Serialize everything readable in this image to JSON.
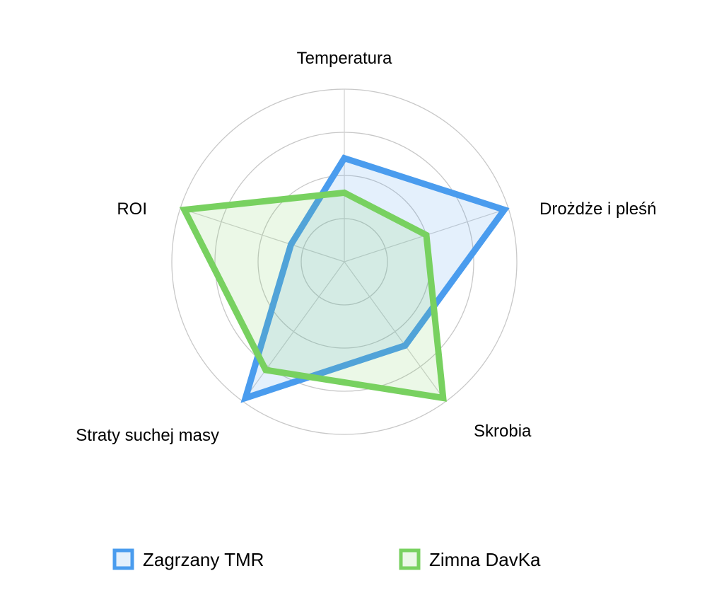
{
  "chart_data": {
    "type": "radar",
    "title": "",
    "axes": [
      "Temperatura",
      "Drożdże i pleśń",
      "Skrobia",
      "Straty suchej masy",
      "ROI"
    ],
    "range": [
      0,
      4
    ],
    "rings": 4,
    "grid": true,
    "legend_position": "bottom",
    "series": [
      {
        "name": "Zagrzany TMR",
        "values": [
          2.4,
          3.9,
          2.4,
          3.9,
          1.3
        ],
        "color": "#4a9cee",
        "fill": "rgba(74,156,238,0.15)"
      },
      {
        "name": "Zimna DavKa",
        "values": [
          1.6,
          2.0,
          3.9,
          3.1,
          3.9
        ],
        "color": "#78d160",
        "fill": "rgba(120,209,96,0.15)"
      }
    ]
  }
}
